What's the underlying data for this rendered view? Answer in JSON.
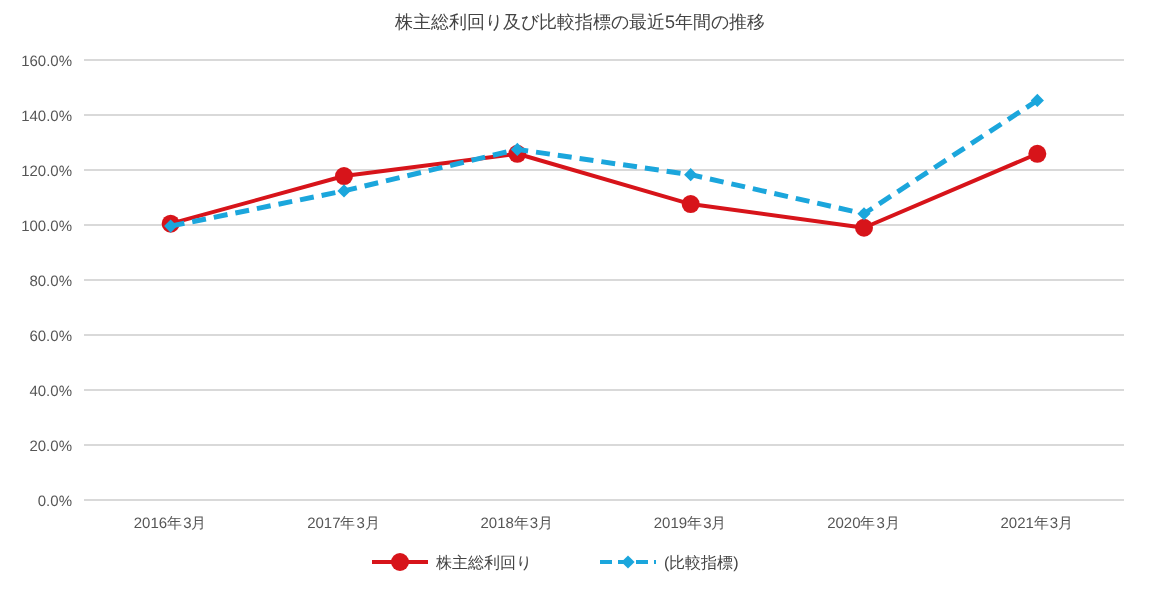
{
  "chart_data": {
    "type": "line",
    "title": "株主総利回り及び比較指標の最近5年間の推移",
    "categories": [
      "2016年3月",
      "2017年3月",
      "2018年3月",
      "2019年3月",
      "2020年3月",
      "2021年3月"
    ],
    "series": [
      {
        "name": "株主総利回り",
        "color": "#d7141a",
        "marker": "circle",
        "line_style": "solid",
        "values": [
          100.5,
          117.8,
          125.9,
          107.6,
          99.0,
          125.9
        ]
      },
      {
        "name": "(比較指標)",
        "color": "#1ba6dc",
        "marker": "diamond",
        "line_style": "dashed",
        "values": [
          99.6,
          112.4,
          127.5,
          118.3,
          104.1,
          145.3
        ]
      }
    ],
    "ylim": [
      0,
      160
    ],
    "yticks": [
      {
        "value": 0,
        "label": "0.0%"
      },
      {
        "value": 20,
        "label": "20.0%"
      },
      {
        "value": 40,
        "label": "40.0%"
      },
      {
        "value": 60,
        "label": "60.0%"
      },
      {
        "value": 80,
        "label": "80.0%"
      },
      {
        "value": 100,
        "label": "100.0%"
      },
      {
        "value": 120,
        "label": "120.0%"
      },
      {
        "value": 140,
        "label": "140.0%"
      },
      {
        "value": 160,
        "label": "160.0%"
      }
    ],
    "grid": "y",
    "legend": "bottom"
  }
}
